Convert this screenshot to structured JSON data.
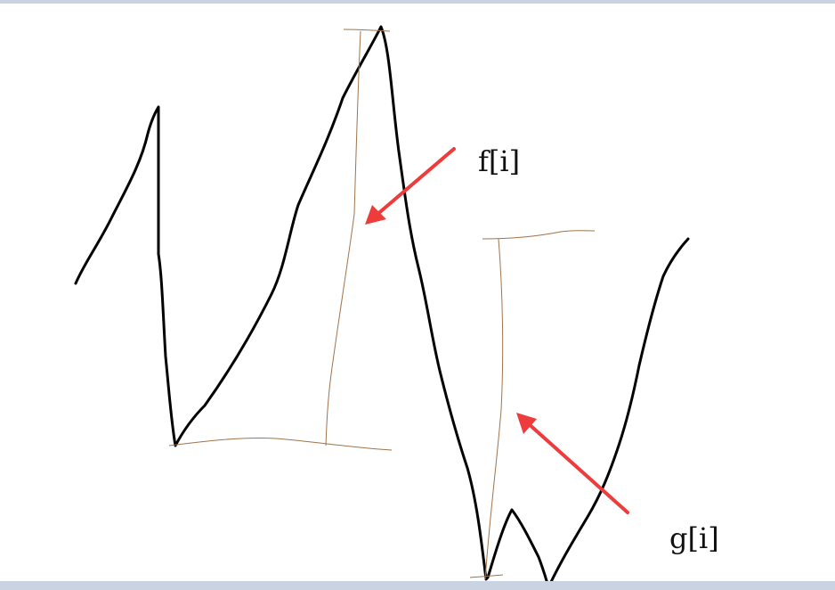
{
  "labels": {
    "f": "f[i]",
    "g": "g[i]"
  },
  "colors": {
    "curve": "#000000",
    "measure": "#a0734a",
    "arrow": "#ee3b3b",
    "frame": "#c9d3e2"
  }
}
